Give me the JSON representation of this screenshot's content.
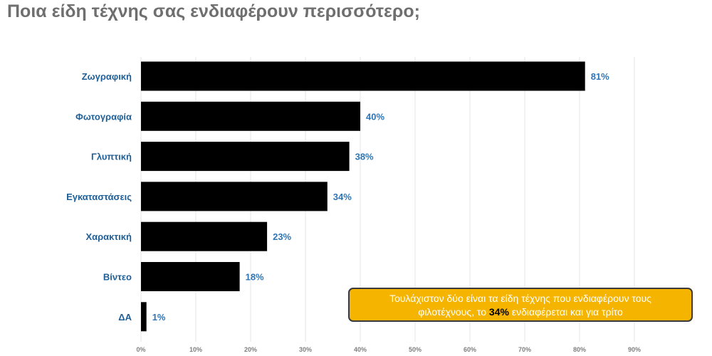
{
  "title": "Ποια είδη τέχνης σας ενδιαφέρουν περισσότερο;",
  "chart_data": {
    "type": "bar",
    "orientation": "horizontal",
    "categories": [
      "Ζωγραφική",
      "Φωτογραφία",
      "Γλυπτική",
      "Εγκαταστάσεις",
      "Χαρακτική",
      "Βίντεο",
      "ΔΑ"
    ],
    "values": [
      81,
      40,
      38,
      34,
      23,
      18,
      1
    ],
    "value_labels": [
      "81%",
      "40%",
      "38%",
      "34%",
      "23%",
      "18%",
      "1%"
    ],
    "xlim": [
      0,
      100
    ],
    "x_ticks": [
      0,
      10,
      20,
      30,
      40,
      50,
      60,
      70,
      80,
      90
    ],
    "x_tick_labels": [
      "0%",
      "10%",
      "20%",
      "30%",
      "40%",
      "50%",
      "60%",
      "70%",
      "80%",
      "90%"
    ],
    "grid": "vertical",
    "bar_color": "#000000",
    "label_color": "#1f5f98",
    "value_label_color": "#2e75b6"
  },
  "callout": {
    "line1": "Τουλάχιστον δύο είναι τα είδη τέχνης που ενδιαφέρουν τους",
    "line2_before": "φιλοτέχνους, το ",
    "line2_highlight": "34%",
    "line2_after": " ενδιαφέρεται και για τρίτο",
    "background": "#f5b400"
  }
}
